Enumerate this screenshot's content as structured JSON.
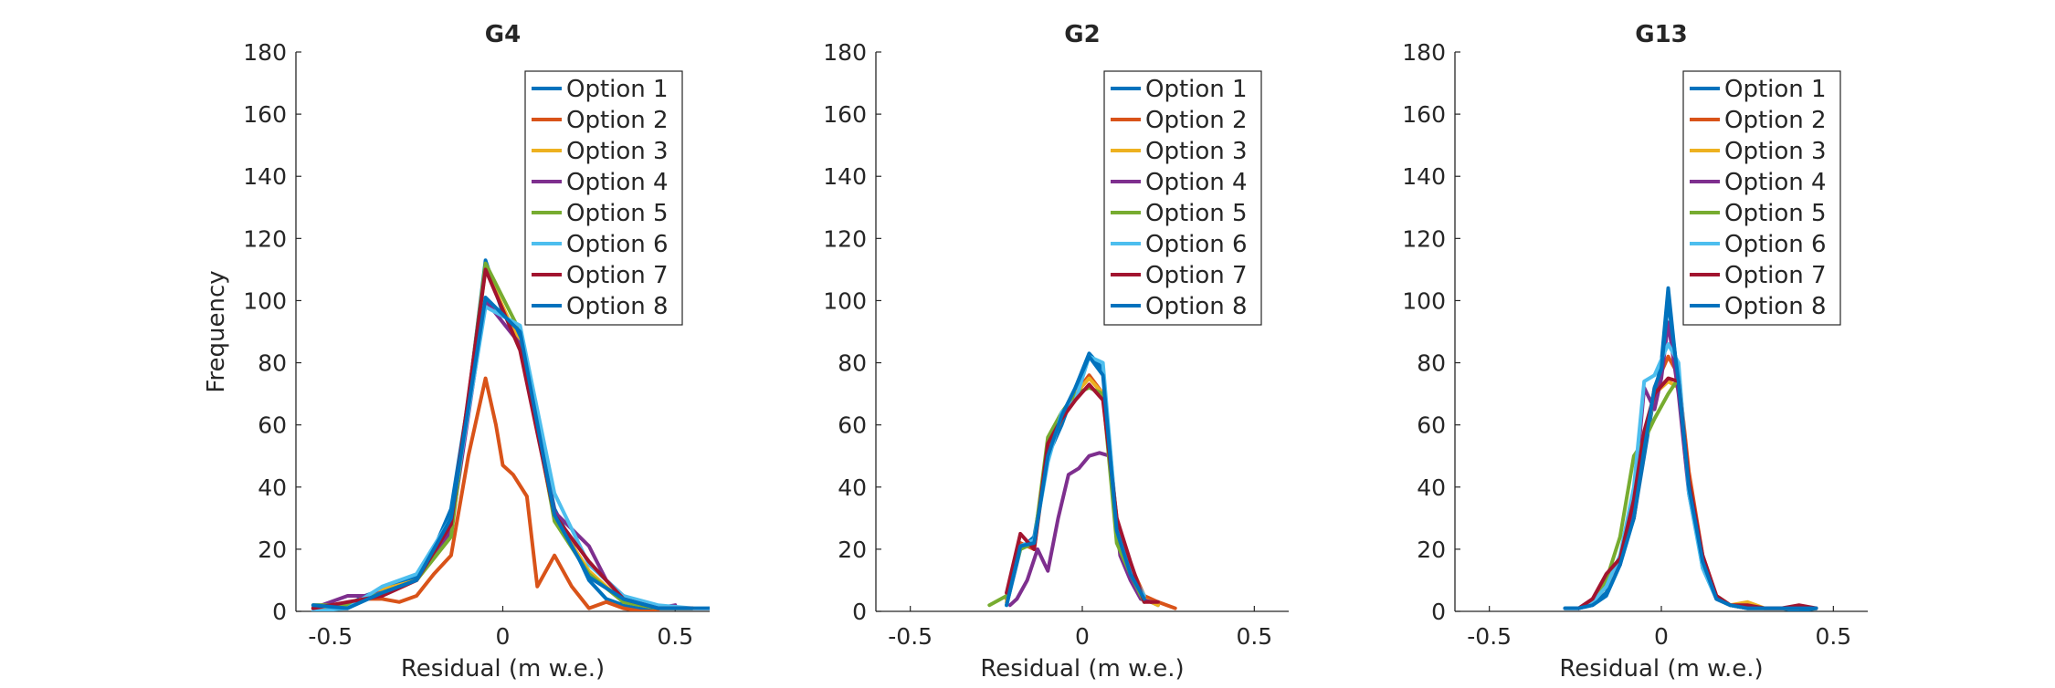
{
  "chart_data": [
    {
      "type": "line",
      "title": "G4",
      "xlabel": "Residual (m w.e.)",
      "ylabel": "Frequency",
      "xlim": [
        -0.6,
        0.6
      ],
      "ylim": [
        0,
        180
      ],
      "xticks": [
        -0.5,
        0,
        0.5
      ],
      "xtick_labels": [
        "-0.5",
        "0",
        "0.5"
      ],
      "yticks": [
        0,
        20,
        40,
        60,
        80,
        100,
        120,
        140,
        160,
        180
      ],
      "ytick_labels": [
        "0",
        "20",
        "40",
        "60",
        "80",
        "100",
        "120",
        "140",
        "160",
        "180"
      ],
      "legend_position": "top-right",
      "series": [
        {
          "name": "Option 1",
          "color": "#0072BD",
          "x": [
            -0.55,
            -0.5,
            -0.45,
            -0.4,
            -0.35,
            -0.3,
            -0.25,
            -0.2,
            -0.15,
            -0.1,
            -0.05,
            0,
            0.05,
            0.1,
            0.15,
            0.2,
            0.25,
            0.3,
            0.35,
            0.4,
            0.45,
            0.5,
            0.55,
            0.6
          ],
          "y": [
            2,
            2,
            2,
            5,
            7,
            9,
            11,
            20,
            33,
            68,
            113,
            96,
            88,
            60,
            33,
            22,
            10,
            4,
            2,
            1,
            1,
            1,
            1,
            1
          ]
        },
        {
          "name": "Option 2",
          "color": "#D95319",
          "x": [
            -0.55,
            -0.5,
            -0.45,
            -0.4,
            -0.35,
            -0.3,
            -0.25,
            -0.2,
            -0.15,
            -0.1,
            -0.05,
            -0.02,
            0,
            0.03,
            0.07,
            0.1,
            0.15,
            0.2,
            0.25,
            0.3,
            0.35,
            0.4,
            0.45
          ],
          "y": [
            1,
            1,
            1,
            4,
            4,
            3,
            5,
            12,
            18,
            50,
            75,
            60,
            47,
            44,
            37,
            8,
            18,
            8,
            1,
            3,
            1,
            0,
            0
          ]
        },
        {
          "name": "Option 3",
          "color": "#EDB120",
          "x": [
            -0.55,
            -0.45,
            -0.35,
            -0.25,
            -0.15,
            -0.05,
            0.05,
            0.15,
            0.25,
            0.35,
            0.45,
            0.55
          ],
          "y": [
            1,
            2,
            7,
            10,
            27,
            110,
            86,
            30,
            13,
            3,
            1,
            1
          ]
        },
        {
          "name": "Option 4",
          "color": "#7E2F8E",
          "x": [
            -0.55,
            -0.45,
            -0.4,
            -0.35,
            -0.25,
            -0.15,
            -0.05,
            0.05,
            0.15,
            0.25,
            0.3,
            0.35,
            0.45,
            0.5
          ],
          "y": [
            1,
            5,
            5,
            6,
            10,
            26,
            100,
            86,
            32,
            21,
            10,
            5,
            1,
            2
          ]
        },
        {
          "name": "Option 5",
          "color": "#77AC30",
          "x": [
            -0.55,
            -0.45,
            -0.35,
            -0.25,
            -0.15,
            -0.05,
            0.05,
            0.15,
            0.25,
            0.35,
            0.45,
            0.55
          ],
          "y": [
            2,
            2,
            6,
            10,
            24,
            112,
            90,
            29,
            12,
            3,
            1,
            1
          ]
        },
        {
          "name": "Option 6",
          "color": "#4DBEEE",
          "x": [
            -0.55,
            -0.45,
            -0.35,
            -0.25,
            -0.15,
            -0.05,
            0.05,
            0.15,
            0.25,
            0.35,
            0.45,
            0.55
          ],
          "y": [
            0,
            1,
            8,
            12,
            30,
            98,
            92,
            38,
            15,
            5,
            2,
            1
          ]
        },
        {
          "name": "Option 7",
          "color": "#A2142F",
          "x": [
            -0.55,
            -0.45,
            -0.35,
            -0.25,
            -0.15,
            -0.05,
            0.05,
            0.15,
            0.25,
            0.35,
            0.45,
            0.55
          ],
          "y": [
            1,
            3,
            5,
            10,
            28,
            110,
            84,
            31,
            16,
            4,
            1,
            1
          ]
        },
        {
          "name": "Option 8",
          "color": "#0072BD",
          "x": [
            -0.55,
            -0.45,
            -0.35,
            -0.25,
            -0.15,
            -0.05,
            0.05,
            0.15,
            0.25,
            0.35,
            0.45,
            0.55
          ],
          "y": [
            2,
            1,
            6,
            10,
            30,
            101,
            90,
            31,
            11,
            4,
            1,
            1
          ]
        }
      ]
    },
    {
      "type": "line",
      "title": "G2",
      "xlabel": "Residual (m w.e.)",
      "ylabel": "",
      "xlim": [
        -0.6,
        0.6
      ],
      "ylim": [
        0,
        180
      ],
      "xticks": [
        -0.5,
        0,
        0.5
      ],
      "xtick_labels": [
        "-0.5",
        "0",
        "0.5"
      ],
      "yticks": [
        0,
        20,
        40,
        60,
        80,
        100,
        120,
        140,
        160,
        180
      ],
      "ytick_labels": [
        "0",
        "20",
        "40",
        "60",
        "80",
        "100",
        "120",
        "140",
        "160",
        "180"
      ],
      "legend_position": "top-right",
      "series": [
        {
          "name": "Option 1",
          "color": "#0072BD",
          "x": [
            -0.22,
            -0.18,
            -0.14,
            -0.1,
            -0.06,
            -0.02,
            0.02,
            0.06,
            0.1,
            0.14,
            0.18,
            0.22
          ],
          "y": [
            2,
            20,
            24,
            50,
            60,
            72,
            83,
            78,
            28,
            12,
            4,
            2
          ]
        },
        {
          "name": "Option 2",
          "color": "#D95319",
          "x": [
            -0.22,
            -0.18,
            -0.14,
            -0.1,
            -0.06,
            -0.02,
            0.02,
            0.06,
            0.1,
            0.14,
            0.18,
            0.22,
            0.27
          ],
          "y": [
            4,
            22,
            20,
            52,
            62,
            70,
            76,
            70,
            30,
            15,
            5,
            3,
            1
          ]
        },
        {
          "name": "Option 3",
          "color": "#EDB120",
          "x": [
            -0.22,
            -0.18,
            -0.14,
            -0.1,
            -0.06,
            -0.02,
            0.02,
            0.06,
            0.1,
            0.14,
            0.18,
            0.22
          ],
          "y": [
            3,
            21,
            22,
            54,
            62,
            70,
            75,
            70,
            27,
            13,
            4,
            2
          ]
        },
        {
          "name": "Option 4",
          "color": "#7E2F8E",
          "x": [
            -0.21,
            -0.19,
            -0.16,
            -0.13,
            -0.1,
            -0.07,
            -0.04,
            -0.01,
            0.02,
            0.05,
            0.08,
            0.11,
            0.14,
            0.17,
            0.2
          ],
          "y": [
            2,
            4,
            10,
            20,
            13,
            30,
            44,
            46,
            50,
            51,
            50,
            18,
            10,
            4,
            3
          ]
        },
        {
          "name": "Option 5",
          "color": "#77AC30",
          "x": [
            -0.27,
            -0.22,
            -0.18,
            -0.14,
            -0.1,
            -0.06,
            -0.02,
            0.02,
            0.06,
            0.1,
            0.14,
            0.18
          ],
          "y": [
            2,
            5,
            20,
            22,
            56,
            64,
            70,
            72,
            70,
            22,
            12,
            3
          ]
        },
        {
          "name": "Option 6",
          "color": "#4DBEEE",
          "x": [
            -0.22,
            -0.18,
            -0.14,
            -0.1,
            -0.06,
            -0.02,
            0.02,
            0.06,
            0.1,
            0.14,
            0.18
          ],
          "y": [
            2,
            21,
            23,
            48,
            64,
            68,
            82,
            80,
            28,
            13,
            5
          ]
        },
        {
          "name": "Option 7",
          "color": "#A2142F",
          "x": [
            -0.22,
            -0.18,
            -0.14,
            -0.1,
            -0.06,
            -0.02,
            0.02,
            0.06,
            0.1,
            0.14,
            0.18,
            0.22
          ],
          "y": [
            6,
            25,
            20,
            54,
            62,
            68,
            73,
            68,
            30,
            16,
            3,
            3
          ]
        },
        {
          "name": "Option 8",
          "color": "#0072BD",
          "x": [
            -0.22,
            -0.18,
            -0.14,
            -0.1,
            -0.06,
            -0.02,
            0.02,
            0.06,
            0.1,
            0.14,
            0.18
          ],
          "y": [
            2,
            21,
            22,
            50,
            63,
            72,
            82,
            76,
            26,
            12,
            4
          ]
        }
      ]
    },
    {
      "type": "line",
      "title": "G13",
      "xlabel": "Residual (m w.e.)",
      "ylabel": "",
      "xlim": [
        -0.6,
        0.6
      ],
      "ylim": [
        0,
        180
      ],
      "xticks": [
        -0.5,
        0,
        0.5
      ],
      "xtick_labels": [
        "-0.5",
        "0",
        "0.5"
      ],
      "yticks": [
        0,
        20,
        40,
        60,
        80,
        100,
        120,
        140,
        160,
        180
      ],
      "ytick_labels": [
        "0",
        "20",
        "40",
        "60",
        "80",
        "100",
        "120",
        "140",
        "160",
        "180"
      ],
      "legend_position": "top-right",
      "series": [
        {
          "name": "Option 1",
          "color": "#0072BD",
          "x": [
            -0.28,
            -0.24,
            -0.2,
            -0.16,
            -0.12,
            -0.08,
            -0.05,
            -0.02,
            0,
            0.02,
            0.05,
            0.08,
            0.12,
            0.16,
            0.2,
            0.25,
            0.3,
            0.35,
            0.4,
            0.45
          ],
          "y": [
            1,
            1,
            2,
            6,
            16,
            30,
            50,
            70,
            80,
            104,
            72,
            40,
            14,
            4,
            2,
            1,
            1,
            1,
            0,
            1
          ]
        },
        {
          "name": "Option 2",
          "color": "#D95319",
          "x": [
            -0.24,
            -0.2,
            -0.16,
            -0.12,
            -0.08,
            -0.05,
            -0.02,
            0.02,
            0.05,
            0.08,
            0.12,
            0.16,
            0.2,
            0.25,
            0.3,
            0.35,
            0.4
          ],
          "y": [
            1,
            3,
            8,
            17,
            30,
            52,
            72,
            82,
            76,
            45,
            18,
            5,
            2,
            1,
            1,
            1,
            1
          ]
        },
        {
          "name": "Option 3",
          "color": "#EDB120",
          "x": [
            -0.24,
            -0.2,
            -0.16,
            -0.12,
            -0.08,
            -0.05,
            -0.02,
            0.02,
            0.05,
            0.08,
            0.12,
            0.16,
            0.2,
            0.25,
            0.3,
            0.35,
            0.4
          ],
          "y": [
            1,
            3,
            9,
            16,
            32,
            54,
            70,
            74,
            72,
            40,
            15,
            4,
            2,
            3,
            1,
            1,
            1
          ]
        },
        {
          "name": "Option 4",
          "color": "#7E2F8E",
          "x": [
            -0.24,
            -0.2,
            -0.16,
            -0.12,
            -0.08,
            -0.05,
            -0.02,
            0,
            0.02,
            0.05,
            0.08,
            0.12,
            0.16,
            0.2,
            0.25,
            0.3,
            0.35,
            0.4
          ],
          "y": [
            1,
            4,
            10,
            15,
            35,
            72,
            65,
            75,
            93,
            70,
            38,
            15,
            4,
            2,
            1,
            1,
            1,
            1
          ]
        },
        {
          "name": "Option 5",
          "color": "#77AC30",
          "x": [
            -0.24,
            -0.2,
            -0.16,
            -0.12,
            -0.08,
            -0.05,
            -0.02,
            0.02,
            0.05,
            0.08,
            0.12,
            0.16,
            0.2,
            0.25,
            0.3,
            0.35,
            0.4,
            0.45
          ],
          "y": [
            1,
            3,
            10,
            24,
            50,
            55,
            62,
            70,
            75,
            40,
            15,
            5,
            2,
            1,
            1,
            1,
            1,
            1
          ]
        },
        {
          "name": "Option 6",
          "color": "#4DBEEE",
          "x": [
            -0.24,
            -0.2,
            -0.16,
            -0.12,
            -0.08,
            -0.05,
            -0.02,
            0.02,
            0.05,
            0.08,
            0.12,
            0.16,
            0.2,
            0.25,
            0.3,
            0.35,
            0.4
          ],
          "y": [
            1,
            3,
            8,
            18,
            40,
            74,
            76,
            86,
            80,
            38,
            14,
            4,
            2,
            1,
            1,
            1,
            1
          ]
        },
        {
          "name": "Option 7",
          "color": "#A2142F",
          "x": [
            -0.24,
            -0.2,
            -0.16,
            -0.12,
            -0.08,
            -0.05,
            -0.02,
            0.02,
            0.05,
            0.08,
            0.12,
            0.16,
            0.2,
            0.25,
            0.3,
            0.35,
            0.4,
            0.45
          ],
          "y": [
            1,
            4,
            12,
            17,
            36,
            58,
            70,
            75,
            74,
            42,
            18,
            5,
            2,
            2,
            1,
            1,
            2,
            1
          ]
        },
        {
          "name": "Option 8",
          "color": "#0072BD",
          "x": [
            -0.28,
            -0.24,
            -0.2,
            -0.16,
            -0.12,
            -0.08,
            -0.05,
            -0.02,
            0,
            0.02,
            0.05,
            0.08,
            0.12,
            0.16,
            0.2,
            0.25,
            0.3,
            0.35,
            0.4,
            0.45
          ],
          "y": [
            1,
            1,
            2,
            5,
            15,
            30,
            52,
            72,
            78,
            100,
            74,
            40,
            16,
            4,
            2,
            1,
            1,
            1,
            1,
            1
          ]
        }
      ]
    }
  ]
}
